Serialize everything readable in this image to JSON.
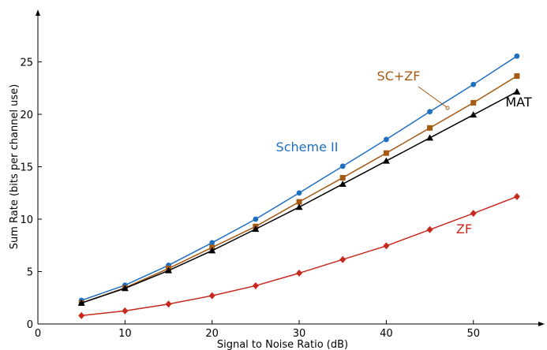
{
  "chart_data": {
    "type": "line",
    "xlabel": "Signal to Noise Ratio (dB)",
    "ylabel": "Sum Rate (bits per channel use)",
    "xlim": [
      0,
      58
    ],
    "ylim": [
      0,
      30
    ],
    "x_ticks": [
      0,
      10,
      20,
      30,
      40,
      50
    ],
    "y_ticks": [
      0,
      5,
      10,
      15,
      20,
      25
    ],
    "x": [
      5,
      10,
      15,
      20,
      25,
      30,
      35,
      40,
      45,
      50,
      55
    ],
    "grid": false,
    "legend": "none (series labeled inline)",
    "series": [
      {
        "name": "Scheme II",
        "color": "#1f6fc0",
        "marker": "circle",
        "values": [
          2.25,
          3.7,
          5.6,
          7.75,
          10.0,
          12.5,
          15.05,
          17.6,
          20.25,
          22.85,
          25.55
        ]
      },
      {
        "name": "SC+ZF",
        "color": "#a55a14",
        "marker": "square",
        "values": [
          2.0,
          3.45,
          5.3,
          7.3,
          9.3,
          11.65,
          13.95,
          16.3,
          18.7,
          21.1,
          23.65
        ]
      },
      {
        "name": "MAT",
        "color": "#000000",
        "marker": "triangle",
        "values": [
          2.0,
          3.4,
          5.1,
          7.0,
          9.05,
          11.15,
          13.35,
          15.55,
          17.75,
          19.95,
          22.15
        ]
      },
      {
        "name": "ZF",
        "color": "#c8281e",
        "marker": "diamond",
        "values": [
          0.8,
          1.25,
          1.9,
          2.7,
          3.65,
          4.85,
          6.15,
          7.45,
          9.0,
          10.55,
          12.15
        ]
      }
    ]
  }
}
